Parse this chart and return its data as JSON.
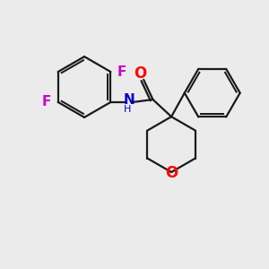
{
  "bg_color": "#ebebeb",
  "bond_color": "#1a1a1a",
  "O_color": "#ff0000",
  "N_color": "#0000cc",
  "F_color": "#cc00cc",
  "carbonyl_O_color": "#ff0000",
  "line_width": 1.6,
  "fig_size": [
    3.0,
    3.0
  ],
  "dpi": 100,
  "xlim": [
    0,
    10
  ],
  "ylim": [
    0,
    10
  ]
}
